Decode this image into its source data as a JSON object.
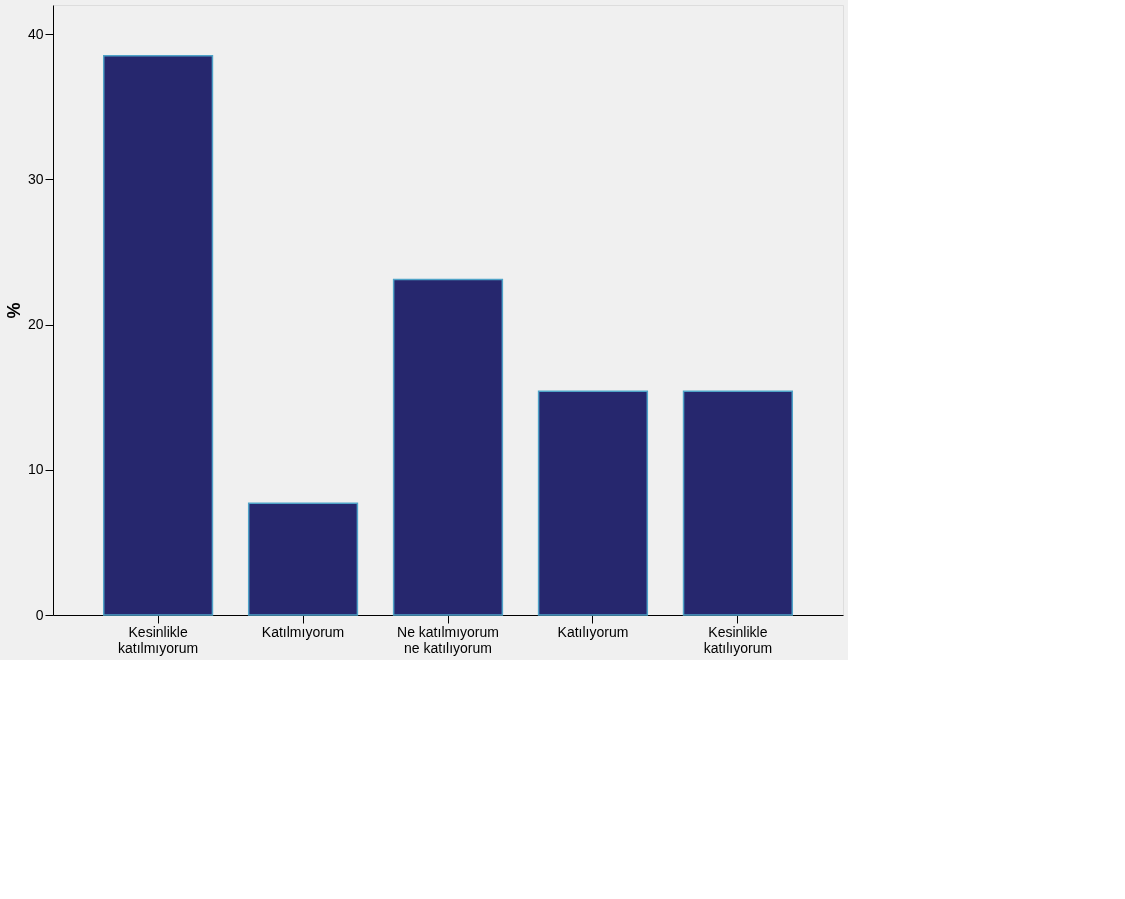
{
  "chart_data": {
    "type": "bar",
    "ylabel": "%",
    "categories": [
      "Kesinlikle\nkatılmıyorum",
      "Katılmıyorum",
      "Ne katılmıyorum\nne katılıyorum",
      "Katılıyorum",
      "Kesinlikle\nkatılıyorum"
    ],
    "values": [
      38.5,
      7.7,
      23.1,
      15.4,
      15.4
    ],
    "color": "#26276e",
    "ylim": [
      0,
      42
    ],
    "yticks": [
      0,
      10,
      20,
      30,
      40
    ],
    "grid": false
  }
}
